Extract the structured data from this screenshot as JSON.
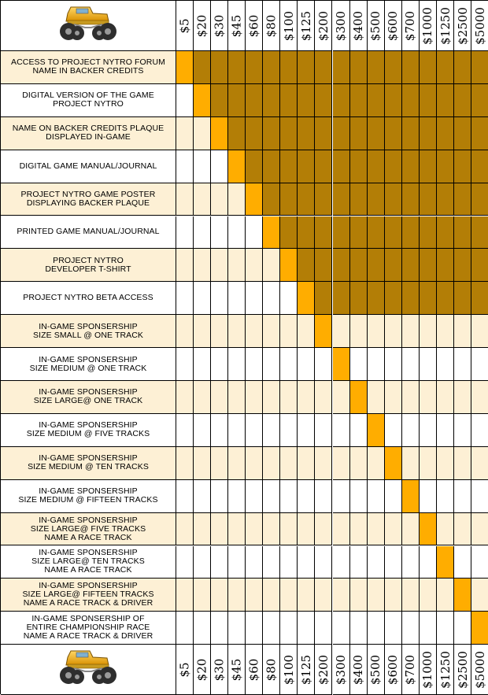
{
  "colors": {
    "frame": "#000000",
    "band_light": "#fdf0d5",
    "band_white": "#ffffff",
    "reward_new": "#ffad00",
    "reward_prior": "#b37e06"
  },
  "logo_icon": "monster-truck-icon",
  "chart_data": {
    "type": "table",
    "tiers": [
      "$5",
      "$20",
      "$30",
      "$45",
      "$60",
      "$80",
      "$100",
      "$125",
      "$200",
      "$300",
      "$400",
      "$500",
      "$600",
      "$700",
      "$1000",
      "$1250",
      "$2500",
      "$5000"
    ],
    "rewards": [
      {
        "label": "ACCESS TO PROJECT NYTRO FORUM\nNAME IN BACKER CREDITS",
        "cumulative": true,
        "unlocked_at": 0
      },
      {
        "label": "DIGITAL VERSION OF THE GAME\nPROJECT NYTRO",
        "cumulative": true,
        "unlocked_at": 1
      },
      {
        "label": "NAME ON BACKER CREDITS PLAQUE\nDISPLAYED IN-GAME",
        "cumulative": true,
        "unlocked_at": 2
      },
      {
        "label": "DIGITAL GAME MANUAL/JOURNAL",
        "cumulative": true,
        "unlocked_at": 3
      },
      {
        "label": "PROJECT NYTRO GAME POSTER\nDISPLAYING BACKER PLAQUE",
        "cumulative": true,
        "unlocked_at": 4
      },
      {
        "label": "PRINTED GAME MANUAL/JOURNAL",
        "cumulative": true,
        "unlocked_at": 5
      },
      {
        "label": "PROJECT NYTRO\nDEVELOPER T-SHIRT",
        "cumulative": true,
        "unlocked_at": 6
      },
      {
        "label": "PROJECT NYTRO BETA ACCESS",
        "cumulative": true,
        "unlocked_at": 7
      },
      {
        "label": "IN-GAME SPONSERSHIP\nSIZE SMALL @ ONE TRACK",
        "cumulative": false,
        "unlocked_at": 8
      },
      {
        "label": "IN-GAME SPONSERSHIP\nSIZE MEDIUM @ ONE TRACK",
        "cumulative": false,
        "unlocked_at": 9
      },
      {
        "label": "IN-GAME SPONSERSHIP\nSIZE LARGE@ ONE TRACK",
        "cumulative": false,
        "unlocked_at": 10
      },
      {
        "label": "IN-GAME SPONSERSHIP\nSIZE MEDIUM @ FIVE TRACKS",
        "cumulative": false,
        "unlocked_at": 11
      },
      {
        "label": "IN-GAME SPONSERSHIP\nSIZE MEDIUM @ TEN TRACKS",
        "cumulative": false,
        "unlocked_at": 12
      },
      {
        "label": "IN-GAME SPONSERSHIP\nSIZE MEDIUM @ FIFTEEN TRACKS",
        "cumulative": false,
        "unlocked_at": 13
      },
      {
        "label": "IN-GAME SPONSERSHIP\nSIZE LARGE@ FIVE TRACKS\nNAME A RACE TRACK",
        "cumulative": false,
        "unlocked_at": 14
      },
      {
        "label": "IN-GAME SPONSERSHIP\nSIZE LARGE@ TEN TRACKS\nNAME A RACE TRACK",
        "cumulative": false,
        "unlocked_at": 15
      },
      {
        "label": "IN-GAME SPONSERSHIP\nSIZE LARGE@ FIFTEEN TRACKS\nNAME A RACE TRACK & DRIVER",
        "cumulative": false,
        "unlocked_at": 16
      },
      {
        "label": "IN-GAME SPONSERSHIP OF\nENTIRE CHAMPIONSHIP RACE\nNAME A RACE TRACK & DRIVER",
        "cumulative": false,
        "unlocked_at": 17
      }
    ]
  }
}
